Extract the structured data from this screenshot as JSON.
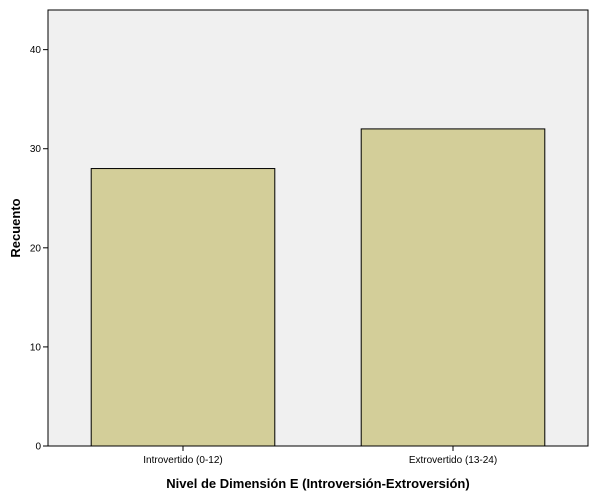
{
  "chart_data": {
    "type": "bar",
    "title": "",
    "xlabel": "Nivel de Dimensión E (Introversión-Extroversión)",
    "ylabel": "Recuento",
    "categories": [
      "Introvertido (0-12)",
      "Extrovertido (13-24)"
    ],
    "values": [
      28,
      32
    ],
    "ylim": [
      0,
      44
    ],
    "yticks": [
      0,
      10,
      20,
      30,
      40
    ],
    "grid": false,
    "legend": "none",
    "colors": {
      "plot_background": "#f0f0f0",
      "bar_fill": "#d3ce99",
      "bar_stroke": "#000000",
      "axis": "#000000"
    }
  }
}
